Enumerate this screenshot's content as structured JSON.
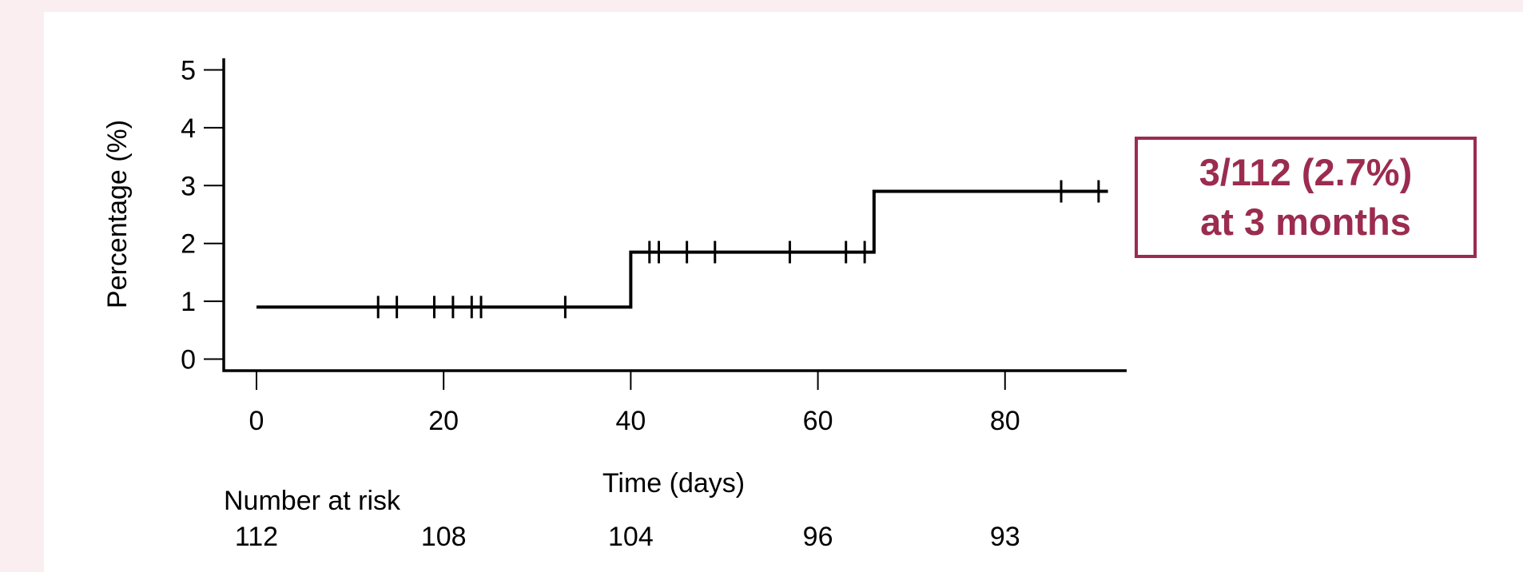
{
  "colors": {
    "page_background": "#fbeef1",
    "card_background": "#ffffff",
    "line": "#000000",
    "callout": "#9b2c50"
  },
  "chart_data": {
    "type": "line",
    "style": "step",
    "xlabel": "Time (days)",
    "ylabel": "Percentage (%)",
    "xlim": [
      -3.5,
      93
    ],
    "ylim": [
      -0.2,
      5.2
    ],
    "x_ticks": [
      0,
      20,
      40,
      60,
      80
    ],
    "y_ticks": [
      0,
      1,
      2,
      3,
      4,
      5
    ],
    "grid": false,
    "series": [
      {
        "x": [
          0,
          40,
          40,
          66,
          66,
          91
        ],
        "y": [
          0.9,
          0.9,
          1.85,
          1.85,
          2.9,
          2.9
        ]
      }
    ],
    "censor_marks": [
      {
        "x": 13,
        "y": 0.9
      },
      {
        "x": 15,
        "y": 0.9
      },
      {
        "x": 19,
        "y": 0.9
      },
      {
        "x": 21,
        "y": 0.9
      },
      {
        "x": 23,
        "y": 0.9
      },
      {
        "x": 24,
        "y": 0.9
      },
      {
        "x": 33,
        "y": 0.9
      },
      {
        "x": 42,
        "y": 1.85
      },
      {
        "x": 43,
        "y": 1.85
      },
      {
        "x": 46,
        "y": 1.85
      },
      {
        "x": 49,
        "y": 1.85
      },
      {
        "x": 57,
        "y": 1.85
      },
      {
        "x": 63,
        "y": 1.85
      },
      {
        "x": 65,
        "y": 1.85
      },
      {
        "x": 86,
        "y": 2.9
      },
      {
        "x": 90,
        "y": 2.9
      }
    ],
    "risk_table": {
      "title": "Number at risk",
      "x": [
        0,
        20,
        40,
        60,
        80
      ],
      "values": [
        "112",
        "108",
        "104",
        "96",
        "93"
      ]
    }
  },
  "annotation": {
    "line1": "3/112 (2.7%)",
    "line2": "at 3 months"
  }
}
